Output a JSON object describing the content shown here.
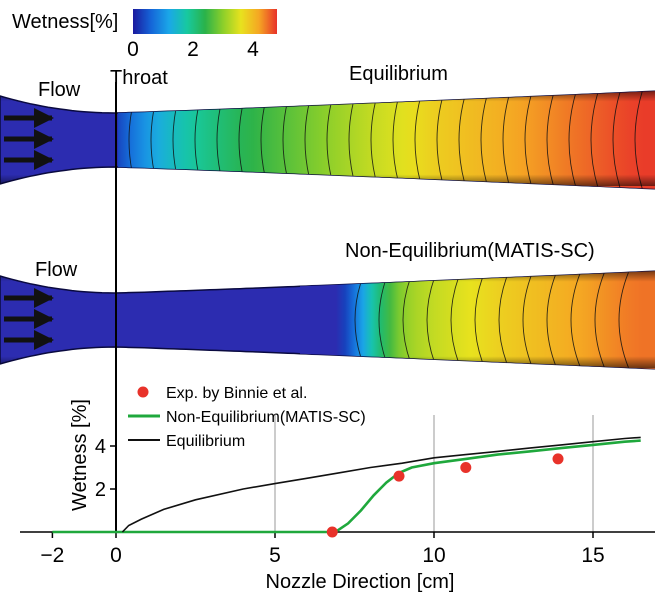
{
  "colorbar": {
    "title": "Wetness[%]",
    "ticks": [
      {
        "value": 0,
        "label": "0"
      },
      {
        "value": 2,
        "label": "2"
      },
      {
        "value": 4,
        "label": "4"
      }
    ],
    "range": [
      0,
      4.8
    ],
    "colors": [
      "#1a1a9e",
      "#1565d8",
      "#1aa7e8",
      "#17c9a0",
      "#2ab24a",
      "#8ccf2a",
      "#e8e21e",
      "#f5a623",
      "#e8322a"
    ]
  },
  "contours": {
    "throat_label": "Throat",
    "panels": [
      {
        "title": "Equilibrium",
        "flow_label": "Flow",
        "model": "equilibrium"
      },
      {
        "title": "Non-Equilibrium(MATIS-SC)",
        "flow_label": "Flow",
        "model": "non-equilibrium"
      }
    ]
  },
  "chart_data": {
    "type": "line",
    "xlabel": "Nozzle Direction [cm]",
    "ylabel": "Wetness [%]",
    "xlim": [
      -2,
      16.5
    ],
    "ylim": [
      0,
      5
    ],
    "xticks": [
      -2,
      0,
      5,
      10,
      15
    ],
    "yticks": [
      2,
      4
    ],
    "vertical_grid": [
      5,
      10,
      15
    ],
    "legend_position": "top-left",
    "series": [
      {
        "name": "Exp. by Binnie et al.",
        "kind": "scatter",
        "color": "#e8322a",
        "points": [
          [
            6.8,
            0.0
          ],
          [
            8.9,
            2.6
          ],
          [
            11.0,
            3.0
          ],
          [
            13.9,
            3.4
          ]
        ]
      },
      {
        "name": "Non-Equilibrium(MATIS-SC)",
        "kind": "line",
        "color": "#1fa83c",
        "points": [
          [
            -2,
            0
          ],
          [
            6.9,
            0
          ],
          [
            7.3,
            0.4
          ],
          [
            7.7,
            1.0
          ],
          [
            8.1,
            1.7
          ],
          [
            8.5,
            2.3
          ],
          [
            8.9,
            2.75
          ],
          [
            9.3,
            3.0
          ],
          [
            10.0,
            3.2
          ],
          [
            11.0,
            3.4
          ],
          [
            12.0,
            3.6
          ],
          [
            13.0,
            3.75
          ],
          [
            14.0,
            3.9
          ],
          [
            15.0,
            4.05
          ],
          [
            16.0,
            4.2
          ],
          [
            16.5,
            4.25
          ]
        ]
      },
      {
        "name": "Equilibrium",
        "kind": "line",
        "color": "#111111",
        "points": [
          [
            0.2,
            0
          ],
          [
            0.4,
            0.3
          ],
          [
            0.8,
            0.6
          ],
          [
            1.5,
            1.05
          ],
          [
            2.5,
            1.5
          ],
          [
            4.0,
            2.0
          ],
          [
            5.0,
            2.25
          ],
          [
            6.0,
            2.5
          ],
          [
            7.0,
            2.75
          ],
          [
            8.0,
            3.0
          ],
          [
            9.0,
            3.2
          ],
          [
            10.0,
            3.45
          ],
          [
            11.0,
            3.6
          ],
          [
            12.0,
            3.75
          ],
          [
            13.0,
            3.9
          ],
          [
            14.0,
            4.05
          ],
          [
            15.0,
            4.2
          ],
          [
            16.0,
            4.35
          ],
          [
            16.5,
            4.4
          ]
        ]
      }
    ]
  }
}
